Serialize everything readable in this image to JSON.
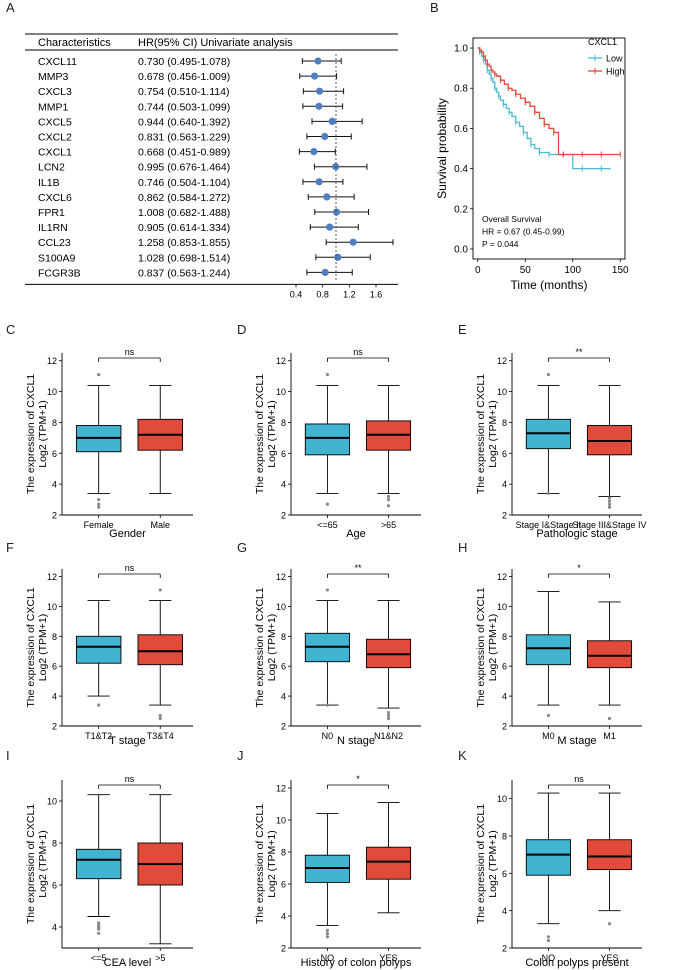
{
  "panels": {
    "A": "A",
    "B": "B",
    "C": "C",
    "D": "D",
    "E": "E",
    "F": "F",
    "G": "G",
    "H": "H",
    "I": "I",
    "J": "J",
    "K": "K"
  },
  "colors": {
    "low": "#4bbcd6",
    "high": "#e8473a",
    "dot": "#4f7fc0",
    "box_low": "#41b4d1",
    "box_high": "#e24b3b"
  },
  "chart_data": [
    {
      "id": "A",
      "type": "forest",
      "header": {
        "characteristics": "Characteristics",
        "hr": "HR(95% CI) Univariate analysis"
      },
      "xticks": [
        0.4,
        0.8,
        1.2,
        1.6
      ],
      "xlim": [
        0.4,
        1.9
      ],
      "rows": [
        {
          "name": "CXCL11",
          "label": "0.730 (0.495-1.078)",
          "hr": 0.73,
          "lo": 0.495,
          "hi": 1.078
        },
        {
          "name": "MMP3",
          "label": "0.678 (0.456-1.009)",
          "hr": 0.678,
          "lo": 0.456,
          "hi": 1.009
        },
        {
          "name": "CXCL3",
          "label": "0.754 (0.510-1.114)",
          "hr": 0.754,
          "lo": 0.51,
          "hi": 1.114
        },
        {
          "name": "MMP1",
          "label": "0.744 (0.503-1.099)",
          "hr": 0.744,
          "lo": 0.503,
          "hi": 1.099
        },
        {
          "name": "CXCL5",
          "label": "0.944 (0.640-1.392)",
          "hr": 0.944,
          "lo": 0.64,
          "hi": 1.392
        },
        {
          "name": "CXCL2",
          "label": "0.831 (0.563-1.229)",
          "hr": 0.831,
          "lo": 0.563,
          "hi": 1.229
        },
        {
          "name": "CXCL1",
          "label": "0.668 (0.451-0.989)",
          "hr": 0.668,
          "lo": 0.451,
          "hi": 0.989
        },
        {
          "name": "LCN2",
          "label": "0.995 (0.676-1.464)",
          "hr": 0.995,
          "lo": 0.676,
          "hi": 1.464
        },
        {
          "name": "IL1B",
          "label": "0.746 (0.504-1.104)",
          "hr": 0.746,
          "lo": 0.504,
          "hi": 1.104
        },
        {
          "name": "CXCL6",
          "label": "0.862 (0.584-1.272)",
          "hr": 0.862,
          "lo": 0.584,
          "hi": 1.272
        },
        {
          "name": "FPR1",
          "label": "1.008 (0.682-1.488)",
          "hr": 1.008,
          "lo": 0.682,
          "hi": 1.488
        },
        {
          "name": "IL1RN",
          "label": "0.905 (0.614-1.334)",
          "hr": 0.905,
          "lo": 0.614,
          "hi": 1.334
        },
        {
          "name": "CCL23",
          "label": "1.258 (0.853-1.855)",
          "hr": 1.258,
          "lo": 0.853,
          "hi": 1.855
        },
        {
          "name": "S100A9",
          "label": "1.028 (0.698-1.514)",
          "hr": 1.028,
          "lo": 0.698,
          "hi": 1.514
        },
        {
          "name": "FCGR3B",
          "label": "0.837 (0.563-1.244)",
          "hr": 0.837,
          "lo": 0.563,
          "hi": 1.244
        }
      ]
    },
    {
      "id": "B",
      "type": "line",
      "xlabel": "Time (months)",
      "ylabel": "Survival probability",
      "xticks": [
        0,
        50,
        100,
        150
      ],
      "yticks": [
        "0.0",
        "0.2",
        "0.4",
        "0.6",
        "0.8",
        "1.0"
      ],
      "xlim": [
        -5,
        155
      ],
      "ylim": [
        -0.05,
        1.05
      ],
      "legend_title": "CXCL1",
      "annotation": [
        "Overall Survival",
        "HR = 0.67 (0.45-0.99)",
        "P = 0.044"
      ],
      "series": [
        {
          "name": "Low",
          "color": "#4bbcd6",
          "x": [
            0,
            2,
            4,
            6,
            8,
            10,
            12,
            14,
            16,
            18,
            20,
            22,
            24,
            27,
            30,
            33,
            36,
            40,
            44,
            48,
            52,
            56,
            60,
            65,
            70,
            75,
            80,
            90,
            100,
            110,
            120,
            130,
            140
          ],
          "y": [
            1.0,
            0.98,
            0.96,
            0.94,
            0.92,
            0.89,
            0.87,
            0.85,
            0.83,
            0.8,
            0.78,
            0.76,
            0.74,
            0.72,
            0.7,
            0.68,
            0.66,
            0.63,
            0.61,
            0.58,
            0.55,
            0.52,
            0.5,
            0.48,
            0.48,
            0.47,
            0.47,
            0.47,
            0.4,
            0.4,
            0.4,
            0.4,
            0.4
          ]
        },
        {
          "name": "High",
          "color": "#e8473a",
          "x": [
            0,
            2,
            4,
            6,
            8,
            10,
            12,
            14,
            16,
            18,
            20,
            24,
            28,
            32,
            36,
            40,
            45,
            50,
            55,
            60,
            65,
            70,
            75,
            80,
            85,
            90,
            100,
            110,
            120,
            130,
            140,
            150
          ],
          "y": [
            1.0,
            0.99,
            0.98,
            0.96,
            0.94,
            0.92,
            0.91,
            0.89,
            0.88,
            0.87,
            0.86,
            0.84,
            0.82,
            0.8,
            0.79,
            0.77,
            0.75,
            0.73,
            0.71,
            0.68,
            0.65,
            0.62,
            0.6,
            0.58,
            0.47,
            0.47,
            0.47,
            0.47,
            0.47,
            0.47,
            0.47,
            0.47
          ]
        }
      ]
    },
    {
      "id": "C",
      "type": "box",
      "xlabel": "Gender",
      "ylabel": "The expression of CXCL1",
      "ylabel2": "Log2 (TPM+1)",
      "ylim": [
        2,
        12.5
      ],
      "yticks": [
        2,
        4,
        6,
        8,
        10,
        12
      ],
      "sig": "ns",
      "groups": [
        {
          "name": "Female",
          "q1": 6.1,
          "median": 7.0,
          "q3": 7.8,
          "wlo": 3.4,
          "whi": 10.4,
          "outliers": [
            11.1,
            2.7,
            2.5,
            3.0
          ]
        },
        {
          "name": "Male",
          "q1": 6.2,
          "median": 7.2,
          "q3": 8.2,
          "wlo": 3.4,
          "whi": 10.4,
          "outliers": []
        }
      ]
    },
    {
      "id": "D",
      "type": "box",
      "xlabel": "Age",
      "ylabel": "The expression of CXCL1",
      "ylabel2": "Log2 (TPM+1)",
      "ylim": [
        2,
        12.5
      ],
      "yticks": [
        2,
        4,
        6,
        8,
        10,
        12
      ],
      "sig": "ns",
      "groups": [
        {
          "name": "<=65",
          "q1": 5.9,
          "median": 7.0,
          "q3": 7.9,
          "wlo": 3.4,
          "whi": 10.4,
          "outliers": [
            11.1,
            2.7
          ]
        },
        {
          "name": ">65",
          "q1": 6.2,
          "median": 7.2,
          "q3": 8.1,
          "wlo": 3.4,
          "whi": 10.4,
          "outliers": [
            3.2,
            3.0,
            2.6
          ]
        }
      ]
    },
    {
      "id": "E",
      "type": "box",
      "xlabel": "Pathologic stage",
      "ylabel": "The expression of CXCL1",
      "ylabel2": "Log2 (TPM+1)",
      "ylim": [
        2,
        12.5
      ],
      "yticks": [
        2,
        4,
        6,
        8,
        10,
        12
      ],
      "sig": "**",
      "groups": [
        {
          "name": "Stage I&Stage II",
          "q1": 6.3,
          "median": 7.3,
          "q3": 8.2,
          "wlo": 3.4,
          "whi": 10.4,
          "outliers": [
            11.1,
            3.4
          ]
        },
        {
          "name": "Stage III&Stage IV",
          "q1": 5.9,
          "median": 6.8,
          "q3": 7.8,
          "wlo": 3.2,
          "whi": 10.4,
          "outliers": [
            2.9,
            2.7,
            2.5,
            3.1
          ]
        }
      ]
    },
    {
      "id": "F",
      "type": "box",
      "xlabel": "T stage",
      "ylabel": "The expression of CXCL1",
      "ylabel2": "Log2 (TPM+1)",
      "ylim": [
        2,
        12.5
      ],
      "yticks": [
        2,
        4,
        6,
        8,
        10,
        12
      ],
      "sig": "ns",
      "groups": [
        {
          "name": "T1&T2",
          "q1": 6.2,
          "median": 7.3,
          "q3": 8.0,
          "wlo": 4.0,
          "whi": 10.4,
          "outliers": [
            3.4
          ]
        },
        {
          "name": "T3&T4",
          "q1": 6.1,
          "median": 7.0,
          "q3": 8.1,
          "wlo": 3.4,
          "whi": 10.4,
          "outliers": [
            11.1,
            2.7,
            2.5
          ]
        }
      ]
    },
    {
      "id": "G",
      "type": "box",
      "xlabel": "N stage",
      "ylabel": "The expression of CXCL1",
      "ylabel2": "Log2 (TPM+1)",
      "ylim": [
        2,
        12.5
      ],
      "yticks": [
        2,
        4,
        6,
        8,
        10,
        12
      ],
      "sig": "**",
      "groups": [
        {
          "name": "N0",
          "q1": 6.3,
          "median": 7.3,
          "q3": 8.2,
          "wlo": 3.4,
          "whi": 10.4,
          "outliers": [
            11.1,
            3.4
          ]
        },
        {
          "name": "N1&N2",
          "q1": 5.9,
          "median": 6.8,
          "q3": 7.8,
          "wlo": 3.2,
          "whi": 10.4,
          "outliers": [
            2.9,
            2.7,
            2.5
          ]
        }
      ]
    },
    {
      "id": "H",
      "type": "box",
      "xlabel": "M stage",
      "ylabel": "The expression of CXCL1",
      "ylabel2": "Log2 (TPM+1)",
      "ylim": [
        2,
        12.5
      ],
      "yticks": [
        2,
        4,
        6,
        8,
        10,
        12
      ],
      "sig": "*",
      "groups": [
        {
          "name": "M0",
          "q1": 6.1,
          "median": 7.2,
          "q3": 8.1,
          "wlo": 3.4,
          "whi": 11.0,
          "outliers": [
            2.7
          ]
        },
        {
          "name": "M1",
          "q1": 5.9,
          "median": 6.7,
          "q3": 7.7,
          "wlo": 3.4,
          "whi": 10.3,
          "outliers": [
            2.5
          ]
        }
      ]
    },
    {
      "id": "I",
      "type": "box",
      "xlabel": "CEA level",
      "ylabel": "The expression of CXCL1",
      "ylabel2": "Log2 (TPM+1)",
      "ylim": [
        3,
        11
      ],
      "yticks": [
        4,
        6,
        8,
        10
      ],
      "sig": "ns",
      "groups": [
        {
          "name": "<=5",
          "q1": 6.3,
          "median": 7.2,
          "q3": 7.7,
          "wlo": 4.5,
          "whi": 10.3,
          "outliers": [
            4.2,
            4.1,
            4.0,
            3.9,
            3.7
          ]
        },
        {
          "name": ">5",
          "q1": 6.0,
          "median": 7.0,
          "q3": 8.0,
          "wlo": 3.2,
          "whi": 10.3,
          "outliers": []
        }
      ]
    },
    {
      "id": "J",
      "type": "box",
      "xlabel": "History of colon polyps",
      "ylabel": "The expression of CXCL1",
      "ylabel2": "Log2 (TPM+1)",
      "ylim": [
        2,
        12.5
      ],
      "yticks": [
        2,
        4,
        6,
        8,
        10,
        12
      ],
      "sig": "*",
      "groups": [
        {
          "name": "NO",
          "q1": 6.1,
          "median": 7.0,
          "q3": 7.8,
          "wlo": 3.4,
          "whi": 10.4,
          "outliers": [
            3.1,
            2.9,
            2.7
          ]
        },
        {
          "name": "YES",
          "q1": 6.3,
          "median": 7.4,
          "q3": 8.3,
          "wlo": 4.2,
          "whi": 11.1,
          "outliers": []
        }
      ]
    },
    {
      "id": "K",
      "type": "box",
      "xlabel": "Colon polyps present",
      "ylabel": "The expression of CXCL1",
      "ylabel2": "Log2 (TPM+1)",
      "ylim": [
        2,
        11
      ],
      "yticks": [
        2,
        4,
        6,
        8,
        10
      ],
      "sig": "ns",
      "groups": [
        {
          "name": "NO",
          "q1": 5.9,
          "median": 7.0,
          "q3": 7.8,
          "wlo": 3.3,
          "whi": 10.3,
          "outliers": [
            2.6,
            2.4
          ]
        },
        {
          "name": "YES",
          "q1": 6.2,
          "median": 6.9,
          "q3": 7.8,
          "wlo": 4.0,
          "whi": 10.3,
          "outliers": [
            3.3
          ]
        }
      ]
    }
  ]
}
